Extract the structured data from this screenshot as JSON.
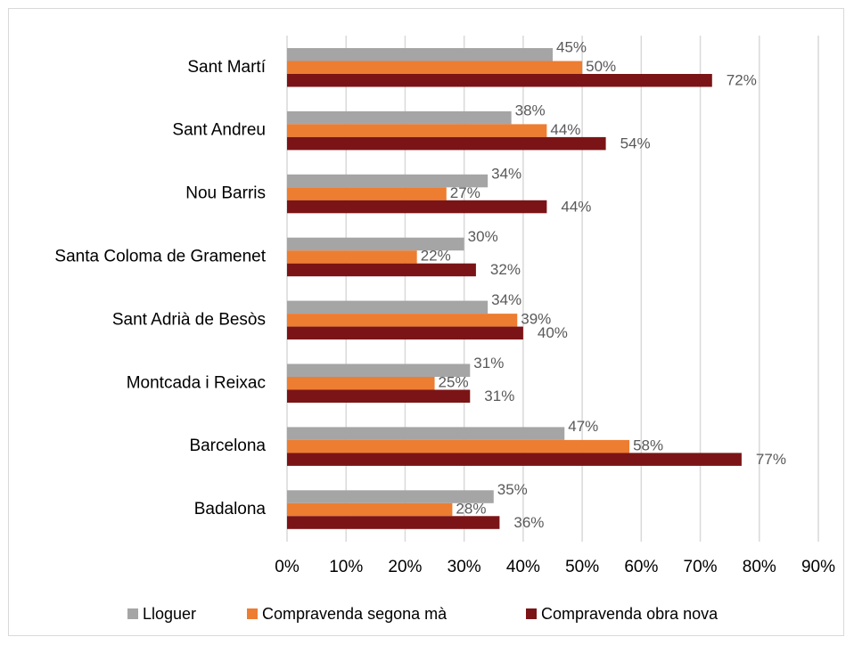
{
  "chart_data": {
    "type": "bar",
    "orientation": "horizontal",
    "categories": [
      "Sant Martí",
      "Sant Andreu",
      "Nou Barris",
      "Santa Coloma de Gramenet",
      "Sant Adrià de Besòs",
      "Montcada i Reixac",
      "Barcelona",
      "Badalona"
    ],
    "series": [
      {
        "name": "Lloguer",
        "color": "#a5a5a5",
        "values": [
          45,
          38,
          34,
          30,
          34,
          31,
          47,
          35
        ],
        "value_labels": [
          "45%",
          "38%",
          "34%",
          "30%",
          "34%",
          "31%",
          "47%",
          "35%"
        ]
      },
      {
        "name": "Compravenda segona mà",
        "color": "#ed7d31",
        "values": [
          50,
          44,
          27,
          22,
          39,
          25,
          58,
          28
        ],
        "value_labels": [
          "50%",
          "44%",
          "27%",
          "22%",
          "39%",
          "25%",
          "58%",
          "28%"
        ]
      },
      {
        "name": "Compravenda obra nova",
        "color": "#7b1416",
        "values": [
          72,
          54,
          44,
          32,
          40,
          31,
          77,
          36
        ],
        "value_labels": [
          "72%",
          "54%",
          "44%",
          "32%",
          "40%",
          "31%",
          "77%",
          "36%"
        ]
      }
    ],
    "xlim": [
      0,
      90
    ],
    "xticks": [
      {
        "value": 0,
        "label": "0%"
      },
      {
        "value": 10,
        "label": "10%"
      },
      {
        "value": 20,
        "label": "20%"
      },
      {
        "value": 30,
        "label": "30%"
      },
      {
        "value": 40,
        "label": "40%"
      },
      {
        "value": 50,
        "label": "50%"
      },
      {
        "value": 60,
        "label": "60%"
      },
      {
        "value": 70,
        "label": "70%"
      },
      {
        "value": 80,
        "label": "80%"
      },
      {
        "value": 90,
        "label": "90%"
      }
    ],
    "grid": true,
    "legend": "bottom"
  }
}
